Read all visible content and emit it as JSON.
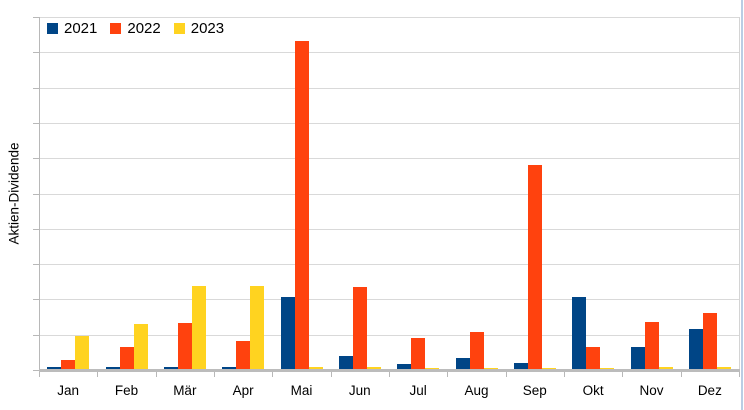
{
  "chart": {
    "y_axis_title": "Aktien-Dividende",
    "legend_items": [
      {
        "label": "2021",
        "color": "#004586"
      },
      {
        "label": "2022",
        "color": "#FF420E"
      },
      {
        "label": "2023",
        "color": "#FFD320"
      }
    ]
  },
  "chart_data": {
    "type": "bar",
    "title": "",
    "xlabel": "",
    "ylabel": "Aktien-Dividende",
    "categories": [
      "Jan",
      "Feb",
      "Mär",
      "Apr",
      "Mai",
      "Jun",
      "Jul",
      "Aug",
      "Sep",
      "Okt",
      "Nov",
      "Dez"
    ],
    "series": [
      {
        "name": "2021",
        "color": "#004586",
        "values": [
          0.06,
          0.06,
          0.06,
          0.06,
          2.05,
          0.37,
          0.14,
          0.31,
          0.18,
          2.05,
          0.62,
          1.13
        ]
      },
      {
        "name": "2022",
        "color": "#FF420E",
        "values": [
          0.25,
          0.62,
          1.3,
          0.8,
          9.3,
          2.32,
          0.88,
          1.05,
          5.78,
          0.62,
          1.33,
          1.6
        ]
      },
      {
        "name": "2023",
        "color": "#FFD320",
        "values": [
          0.93,
          1.27,
          2.35,
          2.35,
          0.06,
          0.06,
          0.04,
          0.04,
          0.04,
          0.04,
          0.06,
          0.06
        ]
      }
    ],
    "ylim": [
      0,
      10
    ],
    "y_tick_labels": "none",
    "grid": true,
    "gridline_divisions": 10,
    "legend_position": "top-left-inside"
  }
}
